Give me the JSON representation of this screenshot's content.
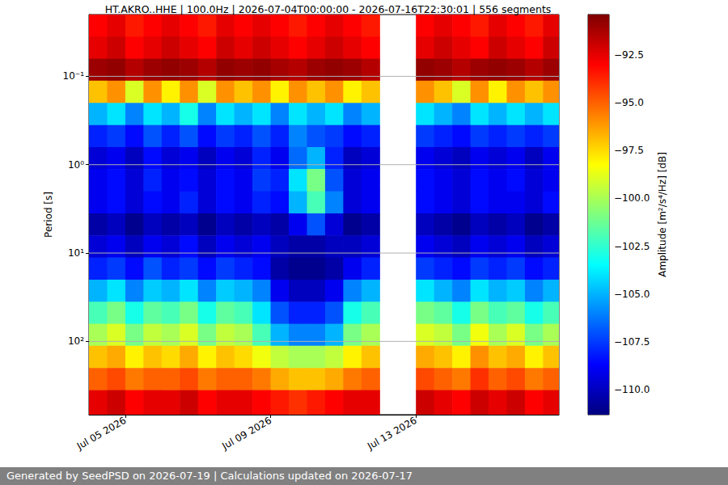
{
  "chart_data": {
    "type": "heatmap",
    "title": "HT.AKRO..HHE | 100.0Hz | 2026-07-04T00:00:00 - 2026-07-16T22:30:01 | 556 segments",
    "ylabel": "Period [s]",
    "colorbar_label": "Amplitude [m²/s⁴/Hz] [dB]",
    "footer": "Generated by SeedPSD on 2026-07-19 | Calculations updated on 2026-07-17",
    "log": "y",
    "grid": true,
    "xlim": [
      "2026-07-04T00:00:00",
      "2026-07-16T22:30:01"
    ],
    "xticks": [
      {
        "value": "2026-07-05T00:00:00",
        "label": "Jul 05 2026"
      },
      {
        "value": "2026-07-09T00:00:00",
        "label": "Jul 09 2026"
      },
      {
        "value": "2026-07-13T00:00:00",
        "label": "Jul 13 2026"
      }
    ],
    "ylim": [
      0.02,
      675
    ],
    "yticks": [
      {
        "value": 0.1,
        "label": "10⁻¹"
      },
      {
        "value": 1,
        "label": "10⁰"
      },
      {
        "value": 10,
        "label": "10¹"
      },
      {
        "value": 100,
        "label": "10²"
      }
    ],
    "clim": [
      -111.3,
      -90.4
    ],
    "cticks": [
      {
        "value": -92.5,
        "label": "−92.5"
      },
      {
        "value": -95,
        "label": "−95.0"
      },
      {
        "value": -97.5,
        "label": "−97.5"
      },
      {
        "value": -100,
        "label": "−100.0"
      },
      {
        "value": -102.5,
        "label": "−102.5"
      },
      {
        "value": -105,
        "label": "−105.0"
      },
      {
        "value": -107.5,
        "label": "−107.5"
      },
      {
        "value": -110,
        "label": "−110.0"
      }
    ],
    "x_edges": [
      "2026-07-04T00:00:00",
      "2026-07-04T12:00:00",
      "2026-07-05T00:00:00",
      "2026-07-05T12:00:00",
      "2026-07-06T00:00:00",
      "2026-07-06T12:00:00",
      "2026-07-07T00:00:00",
      "2026-07-07T12:00:00",
      "2026-07-08T00:00:00",
      "2026-07-08T12:00:00",
      "2026-07-09T00:00:00",
      "2026-07-09T12:00:00",
      "2026-07-10T00:00:00",
      "2026-07-10T12:00:00",
      "2026-07-11T00:00:00",
      "2026-07-11T12:00:00",
      "2026-07-12T00:00:00",
      "2026-07-12T12:00:00",
      "2026-07-13T00:00:00",
      "2026-07-13T12:00:00",
      "2026-07-14T00:00:00",
      "2026-07-14T12:00:00",
      "2026-07-15T00:00:00",
      "2026-07-15T12:00:00",
      "2026-07-16T00:00:00",
      "2026-07-16T12:00:00",
      "2026-07-16T22:30:01"
    ],
    "period_edges": [
      0.02,
      0.0356,
      0.0632,
      0.112,
      0.2,
      0.356,
      0.632,
      1.12,
      2,
      3.56,
      6.32,
      11.2,
      20,
      35.6,
      63.2,
      112,
      200,
      356,
      675
    ],
    "cells": [
      [
        -93,
        -92.5,
        -93.5,
        -93,
        -92.5,
        -93,
        -93.5,
        -92.5,
        -93,
        -92.5,
        -93,
        -93.5,
        -93,
        -92.5,
        -93,
        -93.5,
        null,
        null,
        -93,
        -92.5,
        -93,
        -93.5,
        -92.5,
        -93,
        -93.5,
        -92.5
      ],
      [
        -92.5,
        -92,
        -93,
        -92.5,
        -92,
        -92.5,
        -93,
        -92,
        -92.5,
        -92,
        -92.5,
        -93,
        -92.5,
        -92,
        -92.5,
        -93,
        null,
        null,
        -92.5,
        -92,
        -92.5,
        -93,
        -92,
        -92.5,
        -93,
        -92
      ],
      [
        -91,
        -90.8,
        -91.5,
        -91,
        -90.8,
        -91,
        -91.5,
        -90.8,
        -91,
        -90.8,
        -91.2,
        -91.5,
        -91,
        -90.8,
        -91,
        -91.5,
        null,
        null,
        -90.8,
        -91,
        -91.5,
        -91,
        -90.8,
        -91,
        -91.5,
        -91
      ],
      [
        -97,
        -96,
        -99,
        -96,
        -98,
        -96,
        -99,
        -96,
        -97,
        -96,
        -98,
        -96,
        -97,
        -96,
        -98,
        -97,
        null,
        null,
        -96,
        -97,
        -99,
        -96,
        -98,
        -96,
        -97,
        -96
      ],
      [
        -105,
        -104,
        -106,
        -104,
        -105,
        -103,
        -106,
        -104,
        -105,
        -104,
        -106,
        -104,
        -105,
        -104,
        -106,
        -105,
        null,
        null,
        -104,
        -105,
        -106,
        -104,
        -105,
        -104,
        -105,
        -104
      ],
      [
        -108,
        -107.5,
        -108.5,
        -107,
        -108,
        -107,
        -108.5,
        -107.5,
        -108,
        -107,
        -108,
        -106,
        -107,
        -107.5,
        -108.5,
        -108,
        null,
        null,
        -107.5,
        -108,
        -108.5,
        -107.5,
        -108,
        -107.5,
        -108,
        -107.5
      ],
      [
        -109.5,
        -109,
        -110,
        -108.5,
        -109.5,
        -109,
        -110,
        -109,
        -109.5,
        -108,
        -109,
        -106.5,
        -105,
        -108,
        -110,
        -109.5,
        null,
        null,
        -109,
        -109.5,
        -110,
        -109,
        -109.5,
        -109,
        -110,
        -109
      ],
      [
        -109,
        -108.5,
        -109.5,
        -108,
        -109,
        -108.5,
        -109.5,
        -108.5,
        -109,
        -107.5,
        -108,
        -104,
        -101,
        -107,
        -109.5,
        -109,
        null,
        null,
        -108.5,
        -109,
        -109.5,
        -108.5,
        -109,
        -108.5,
        -109.5,
        -109
      ],
      [
        -109,
        -108.5,
        -109.5,
        -108.5,
        -109,
        -108,
        -109.5,
        -108.5,
        -109,
        -108,
        -108.5,
        -105,
        -102,
        -106,
        -109.5,
        -109,
        null,
        null,
        -108.5,
        -109,
        -109.5,
        -108.5,
        -109,
        -109,
        -109.5,
        -108.5
      ],
      [
        -110.5,
        -110,
        -111,
        -110,
        -110.5,
        -110,
        -111,
        -110,
        -110.5,
        -110,
        -110.5,
        -109,
        -107,
        -109.5,
        -111,
        -110.5,
        null,
        null,
        -110,
        -110.5,
        -111,
        -110,
        -110.5,
        -110,
        -111,
        -110.5
      ],
      [
        -109.5,
        -109,
        -110,
        -109,
        -109.5,
        -108.5,
        -110,
        -109,
        -109.5,
        -109,
        -110,
        -110.5,
        -110.5,
        -110,
        -110,
        -109.5,
        null,
        null,
        -109,
        -109.5,
        -110,
        -109,
        -109.5,
        -109,
        -110,
        -109.5
      ],
      [
        -108,
        -107.5,
        -108.5,
        -107,
        -108,
        -107.5,
        -108.5,
        -107.5,
        -108,
        -108.5,
        -110.5,
        -111,
        -111,
        -110.5,
        -109,
        -108,
        null,
        null,
        -107.5,
        -108,
        -108.5,
        -107.5,
        -108,
        -107.5,
        -108.5,
        -108
      ],
      [
        -105,
        -104,
        -106,
        -104.5,
        -105,
        -104,
        -106,
        -104.5,
        -105,
        -106,
        -109,
        -110,
        -110,
        -109,
        -106,
        -105,
        null,
        null,
        -104,
        -105,
        -106,
        -104,
        -105,
        -104.5,
        -106,
        -105
      ],
      [
        -102,
        -101,
        -103,
        -101.5,
        -102,
        -101,
        -103,
        -101.5,
        -102,
        -104,
        -107,
        -108,
        -108,
        -107,
        -103,
        -102,
        null,
        null,
        -101,
        -101.5,
        -103,
        -101,
        -102,
        -101.5,
        -103,
        -102
      ],
      [
        -100,
        -99,
        -101,
        -99.5,
        -100,
        -99,
        -101,
        -99.5,
        -100,
        -102,
        -105,
        -106,
        -106,
        -105,
        -101,
        -100,
        null,
        null,
        -99,
        -99.5,
        -101,
        -98.5,
        -100,
        -99,
        -101,
        -100
      ],
      [
        -97,
        -96.5,
        -98,
        -97,
        -97.5,
        -96.5,
        -98,
        -97,
        -97.5,
        -98.5,
        -99.5,
        -100,
        -100,
        -99.5,
        -98,
        -97,
        null,
        null,
        -96.5,
        -97,
        -98,
        -96,
        -97,
        -96.5,
        -98,
        -97
      ],
      [
        -95,
        -94.5,
        -95.5,
        -95,
        -95,
        -94.5,
        -95.5,
        -95,
        -95,
        -95.5,
        -96.5,
        -97,
        -97,
        -96.5,
        -95.5,
        -95,
        null,
        null,
        -94.5,
        -95,
        -95.5,
        -94,
        -95,
        -94.5,
        -95.5,
        -95
      ],
      [
        -92.5,
        -92,
        -93,
        -92.5,
        -92.5,
        -92,
        -93,
        -92.5,
        -92.5,
        -93,
        -93.5,
        -94,
        -93.5,
        -93,
        -92.5,
        -92.5,
        null,
        null,
        -92,
        -92.5,
        -93,
        -92,
        -92.5,
        -92,
        -93,
        -92.5
      ]
    ]
  }
}
